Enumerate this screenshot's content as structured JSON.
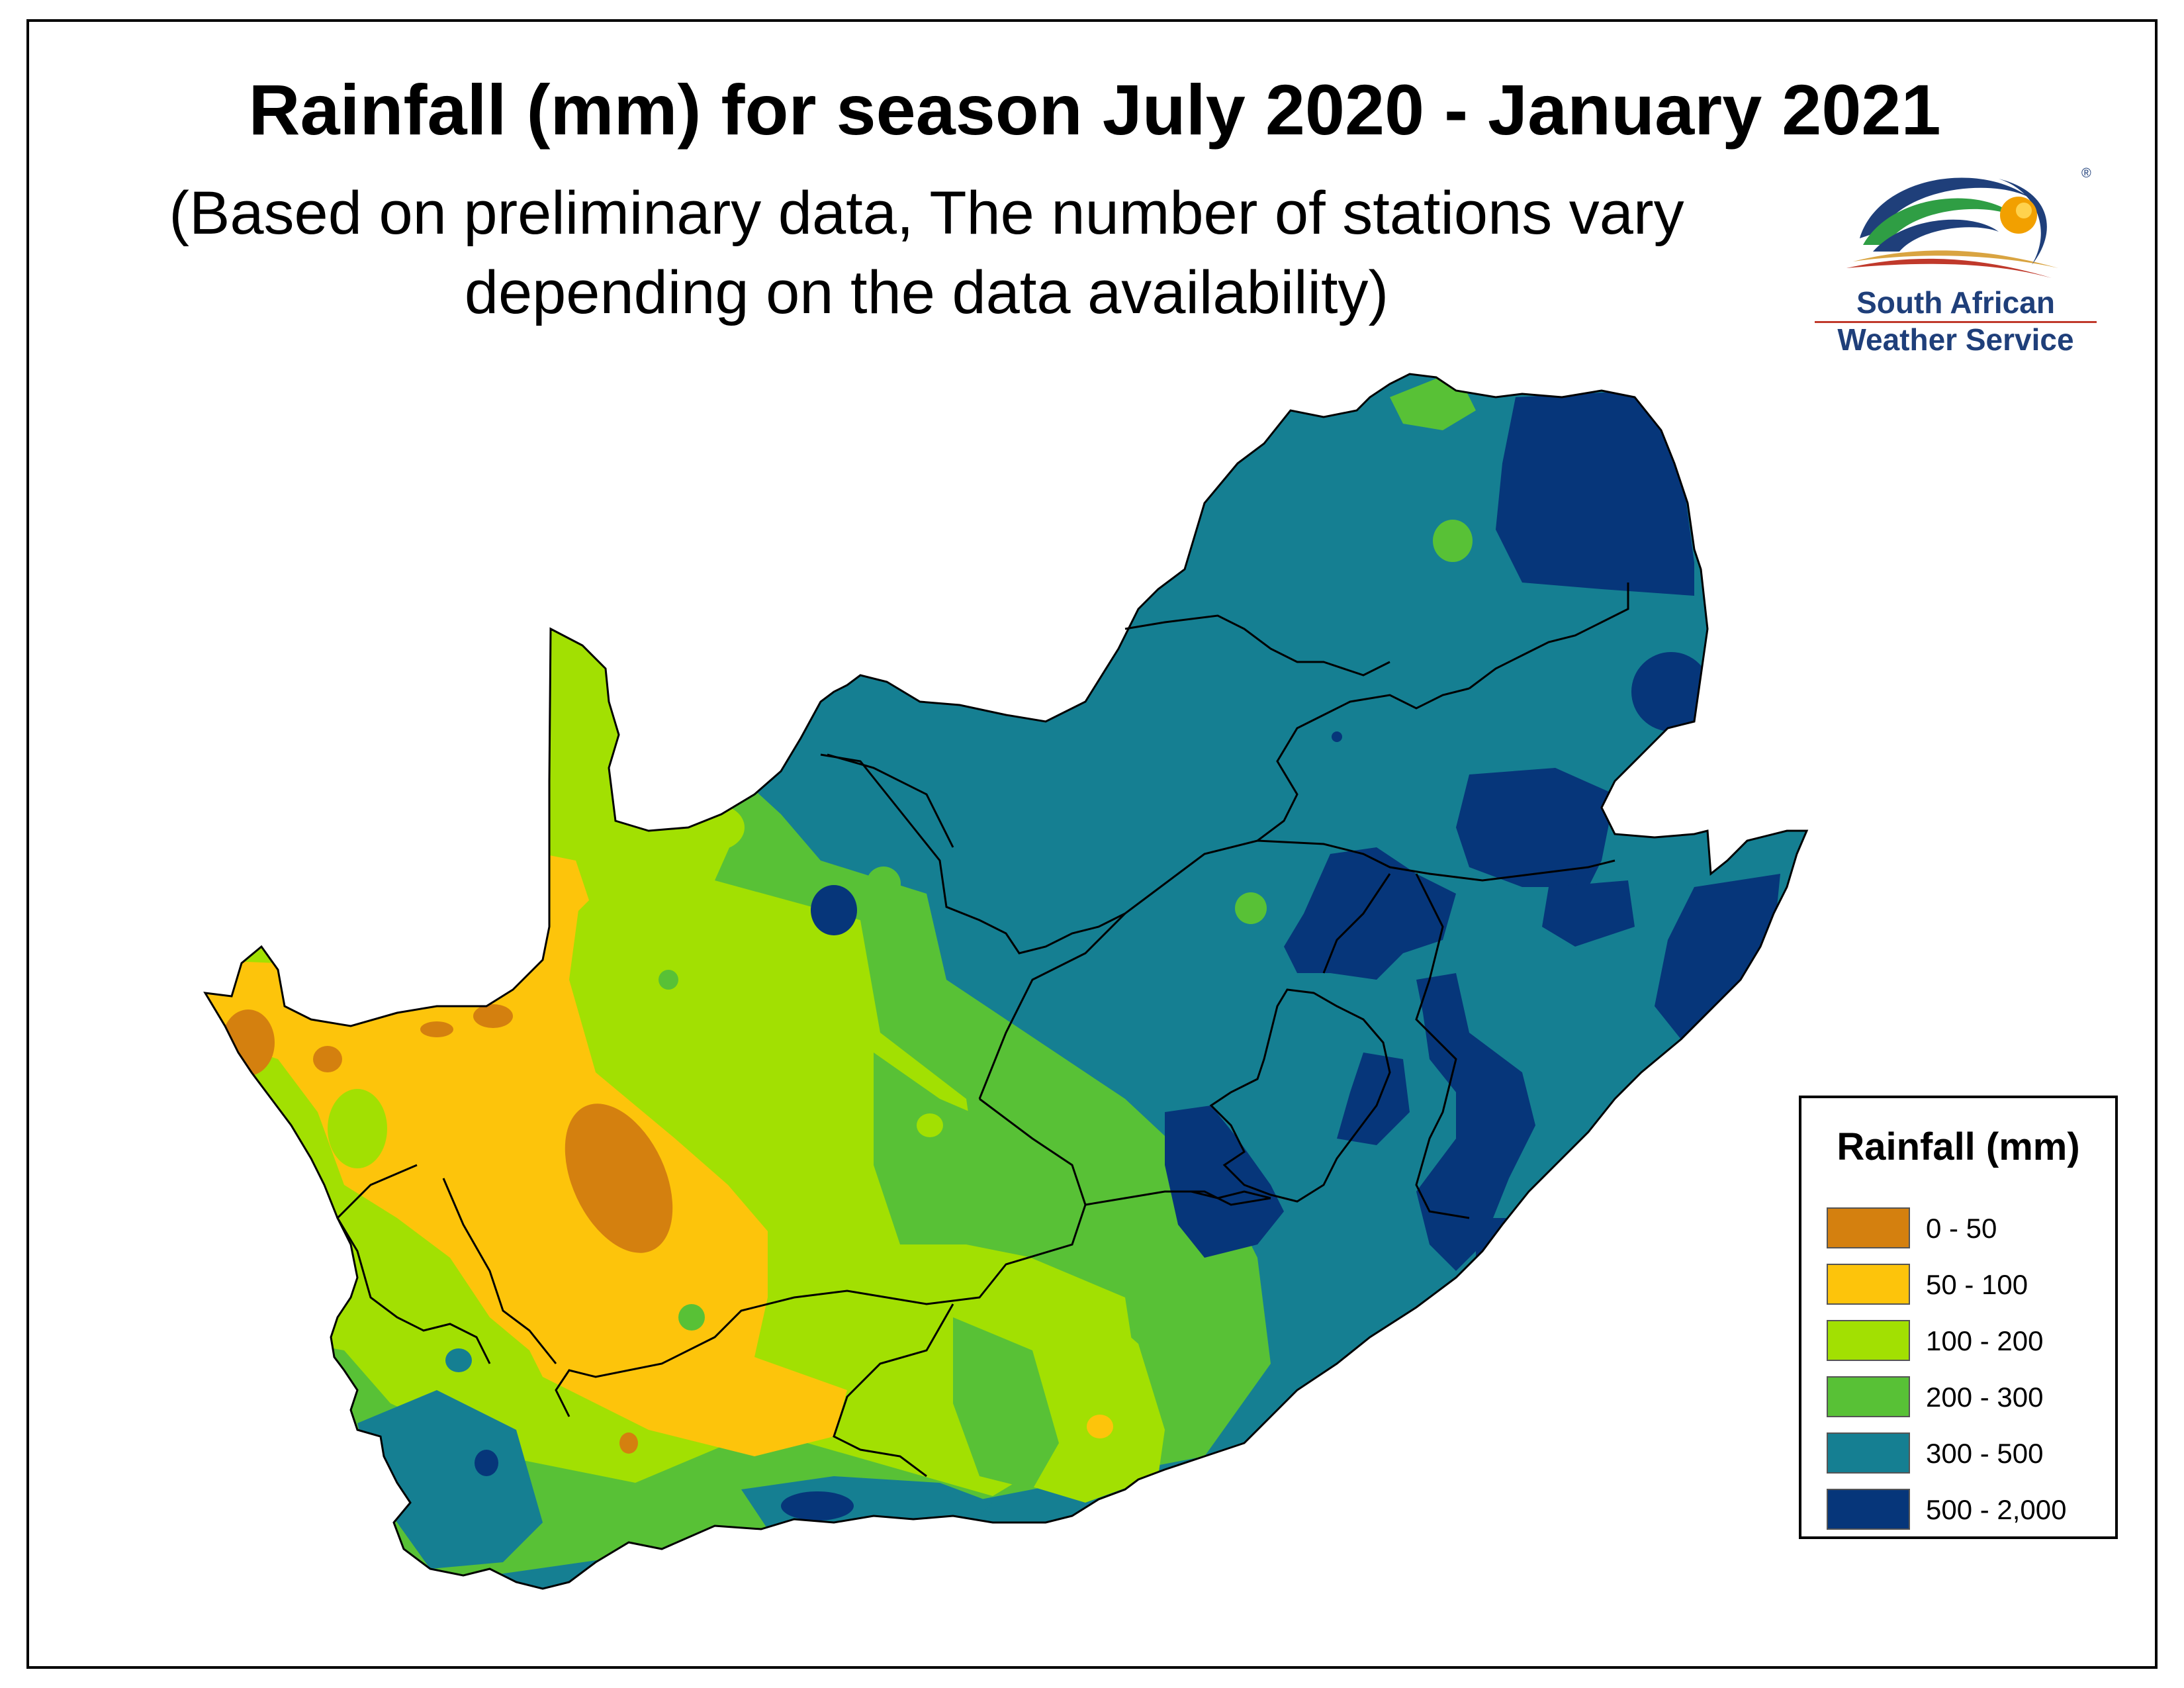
{
  "title": "Rainfall (mm)  for season July 2020 - January 2021",
  "subtitle_line1": "(Based on preliminary data, The number of stations vary",
  "subtitle_line2": "depending on the data availability)",
  "logo": {
    "line1": "South African",
    "line2": "Weather Service",
    "registered_mark": "®"
  },
  "legend": {
    "title": "Rainfall (mm)",
    "items": [
      {
        "label": "0 - 50",
        "color": "#d4800f"
      },
      {
        "label": "50 - 100",
        "color": "#fdc40b"
      },
      {
        "label": "100 - 200",
        "color": "#a2e002"
      },
      {
        "label": "200 - 300",
        "color": "#58c136"
      },
      {
        "label": "300 - 500",
        "color": "#157f92"
      },
      {
        "label": "500 - 2,000",
        "color": "#06367a"
      }
    ]
  },
  "colors": {
    "c0_50": "#d4800f",
    "c50_100": "#fdc40b",
    "c100_200": "#a2e002",
    "c200_300": "#58c136",
    "c300_500": "#157f92",
    "c500_2000": "#06367a",
    "border": "#000000"
  }
}
